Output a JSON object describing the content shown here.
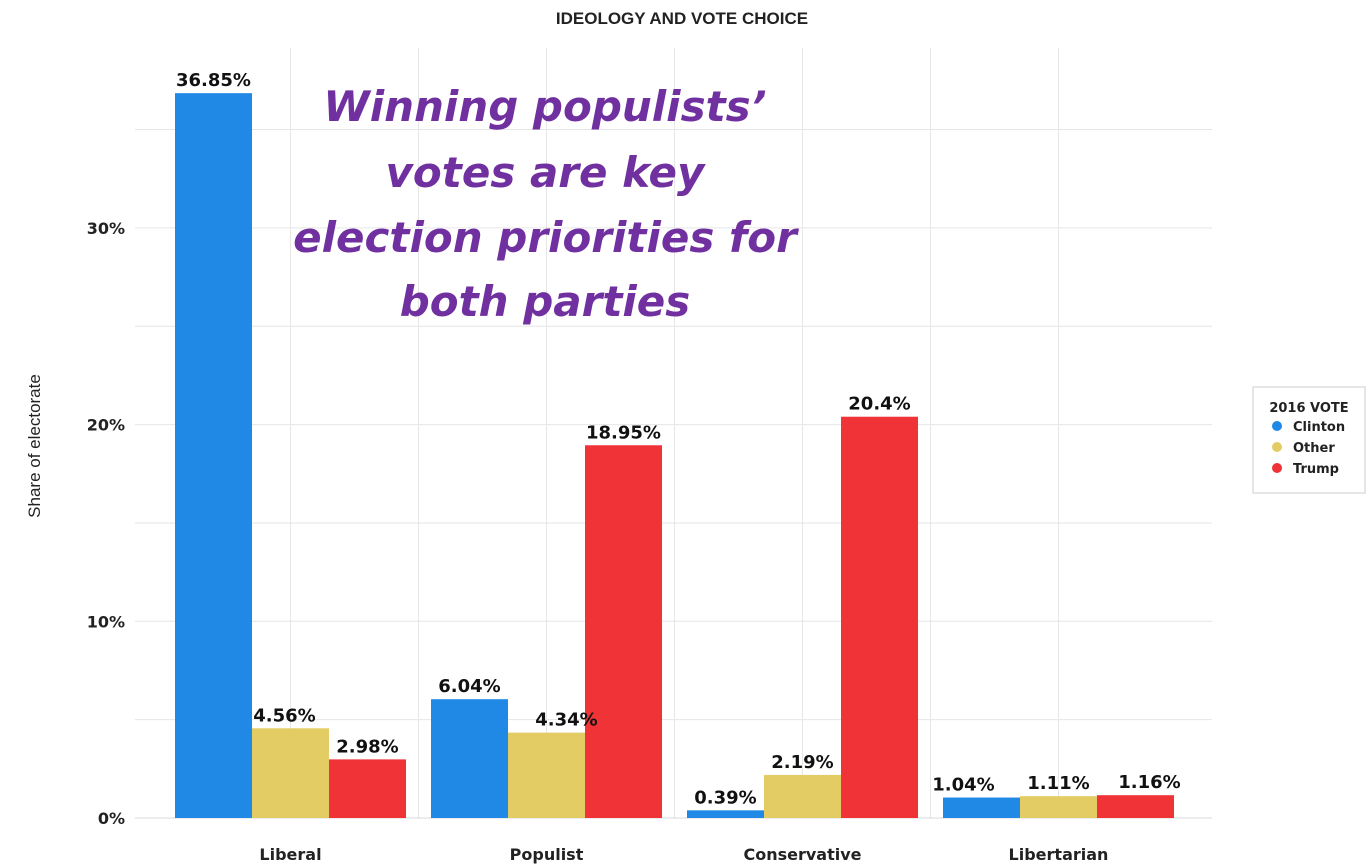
{
  "chart_data": {
    "type": "bar",
    "title": "IDEOLOGY AND VOTE CHOICE",
    "ylabel": "Share of electorate",
    "xlabel": "",
    "ylim": [
      0,
      37
    ],
    "yticks": [
      0,
      10,
      20,
      30
    ],
    "ytick_labels": [
      "0%",
      "10%",
      "20%",
      "30%"
    ],
    "grid": true,
    "categories": [
      "Liberal",
      "Populist",
      "Conservative",
      "Libertarian"
    ],
    "series": [
      {
        "name": "Clinton",
        "color": "#2089e6",
        "values": [
          36.85,
          6.04,
          0.39,
          1.04
        ],
        "labels": [
          "36.85%",
          "6.04%",
          "0.39%",
          "1.04%"
        ]
      },
      {
        "name": "Other",
        "color": "#e3cc63",
        "values": [
          4.56,
          4.34,
          2.19,
          1.11
        ],
        "labels": [
          "4.56%",
          "4.34%",
          "2.19%",
          "1.11%"
        ]
      },
      {
        "name": "Trump",
        "color": "#f03337",
        "values": [
          2.98,
          18.95,
          20.4,
          1.16
        ],
        "labels": [
          "2.98%",
          "18.95%",
          "20.4%",
          "1.16%"
        ]
      }
    ],
    "legend": {
      "title": "2016 VOTE",
      "position": "right"
    },
    "annotation": {
      "lines": [
        "Winning populists’",
        "votes are key",
        "election priorities for",
        "both parties"
      ],
      "color": "#7030a0"
    }
  }
}
